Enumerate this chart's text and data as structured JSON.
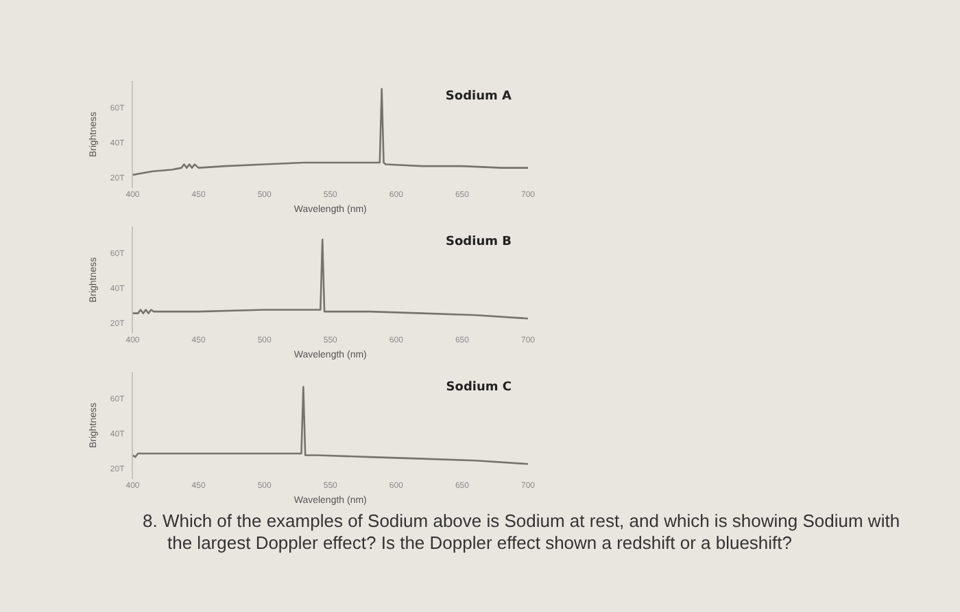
{
  "chart_data": [
    {
      "type": "line",
      "title": "Sodium A",
      "xlabel": "Wavelength (nm)",
      "ylabel": "Brightness",
      "xlim": [
        400,
        700
      ],
      "xticks": [
        400,
        450,
        500,
        550,
        600,
        650,
        700
      ],
      "ylim": [
        15,
        75
      ],
      "yticks": [
        {
          "value": 20,
          "label": "20T"
        },
        {
          "value": 40,
          "label": "40T"
        },
        {
          "value": 60,
          "label": "60T"
        }
      ],
      "marker": "none",
      "line_style": "solid",
      "series": [
        {
          "color": "#77736c",
          "x": [
            400,
            415,
            430,
            437,
            439,
            441,
            443,
            445,
            447,
            450,
            470,
            500,
            530,
            560,
            587.5,
            589,
            590.5,
            592,
            620,
            650,
            680,
            700
          ],
          "values": [
            22,
            24,
            25,
            26,
            28,
            26,
            28,
            26,
            28,
            26,
            27,
            28,
            29,
            29,
            29,
            71,
            29,
            28,
            27,
            27,
            26,
            26
          ]
        }
      ]
    },
    {
      "type": "line",
      "title": "Sodium B",
      "xlabel": "Wavelength (nm)",
      "ylabel": "Brightness",
      "xlim": [
        400,
        700
      ],
      "xticks": [
        400,
        450,
        500,
        550,
        600,
        650,
        700
      ],
      "ylim": [
        15,
        75
      ],
      "yticks": [
        {
          "value": 20,
          "label": "20T"
        },
        {
          "value": 40,
          "label": "40T"
        },
        {
          "value": 60,
          "label": "60T"
        }
      ],
      "marker": "none",
      "line_style": "solid",
      "series": [
        {
          "color": "#77736c",
          "x": [
            400,
            404,
            406,
            408,
            410,
            412,
            414,
            416,
            420,
            450,
            500,
            542.5,
            544,
            545.5,
            548,
            580,
            620,
            660,
            700
          ],
          "values": [
            26,
            26,
            28,
            26,
            28,
            26,
            28,
            27,
            27,
            27,
            28,
            28,
            68,
            27,
            27,
            27,
            26,
            25,
            23
          ]
        }
      ]
    },
    {
      "type": "line",
      "title": "Sodium C",
      "xlabel": "Wavelength (nm)",
      "ylabel": "Brightness",
      "xlim": [
        400,
        700
      ],
      "xticks": [
        400,
        450,
        500,
        550,
        600,
        650,
        700
      ],
      "ylim": [
        15,
        75
      ],
      "yticks": [
        {
          "value": 20,
          "label": "20T"
        },
        {
          "value": 40,
          "label": "40T"
        },
        {
          "value": 60,
          "label": "60T"
        }
      ],
      "marker": "none",
      "line_style": "solid",
      "annotations": [
        "8. Which of the examples of Sodium above is Sodium at rest, and which is showing Sodium with the largest Doppler effect? Is the Doppler effect shown a redshift or a blueshift?"
      ],
      "series": [
        {
          "color": "#77736c",
          "x": [
            400,
            402,
            404,
            430,
            470,
            500,
            528,
            529.5,
            531,
            540,
            580,
            620,
            660,
            700
          ],
          "values": [
            28,
            27,
            29,
            29,
            29,
            29,
            29,
            67,
            28,
            28,
            27,
            26,
            25,
            23
          ]
        }
      ]
    }
  ]
}
